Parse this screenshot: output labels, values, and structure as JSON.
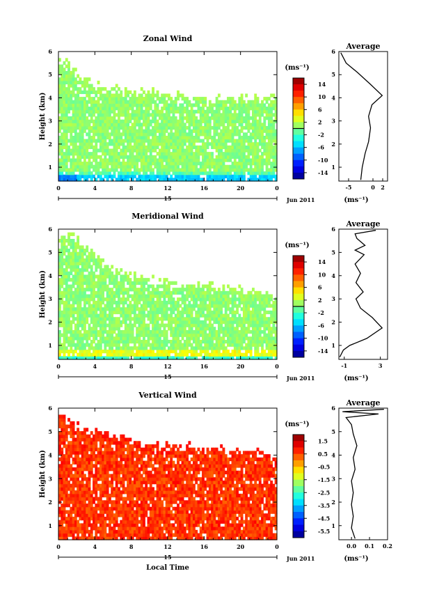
{
  "chart_data": [
    {
      "type": "heatmap",
      "title": "Zonal Wind",
      "ylabel": "Height (km)",
      "xticks": [
        "0",
        "4",
        "8",
        "12",
        "16",
        "20",
        "0"
      ],
      "xlim": [
        0,
        24
      ],
      "ylim": [
        0.4,
        6
      ],
      "yticks": [
        "1",
        "2",
        "3",
        "4",
        "5",
        "6"
      ],
      "date_day": "15",
      "date_month": "Jun 2011",
      "colorbar": {
        "unit": "(ms⁻¹)",
        "ticks": [
          "14",
          "10",
          "6",
          "2",
          "-2",
          "-6",
          "-10",
          "-14"
        ],
        "range": [
          -16,
          16
        ],
        "kind": "zonal"
      },
      "cover": [
        [
          0.6,
          5.6
        ],
        [
          2,
          5.0
        ],
        [
          4,
          4.5
        ],
        [
          8,
          4.3
        ],
        [
          12,
          4.1
        ],
        [
          16,
          3.95
        ],
        [
          20,
          4.0
        ],
        [
          24,
          4.0
        ]
      ],
      "field": "zonal",
      "avg": {
        "title": "Average",
        "xlabel": "(ms⁻¹)",
        "xticks": [
          "-5",
          "0",
          "2"
        ],
        "xlim": [
          -7,
          3
        ],
        "profile": [
          [
            -2.5,
            0.45
          ],
          [
            -2.2,
            1.0
          ],
          [
            -1.6,
            1.6
          ],
          [
            -0.9,
            2.1
          ],
          [
            -0.5,
            2.7
          ],
          [
            -0.9,
            3.2
          ],
          [
            -0.2,
            3.7
          ],
          [
            1.9,
            4.1
          ],
          [
            -0.6,
            4.6
          ],
          [
            -3.2,
            5.1
          ],
          [
            -5.5,
            5.5
          ],
          [
            -6.6,
            5.95
          ]
        ]
      }
    },
    {
      "type": "heatmap",
      "title": "Meridional Wind",
      "ylabel": "Height (km)",
      "xticks": [
        "0",
        "4",
        "8",
        "12",
        "16",
        "20",
        "0"
      ],
      "xlim": [
        0,
        24
      ],
      "ylim": [
        0.4,
        6
      ],
      "yticks": [
        "1",
        "2",
        "3",
        "4",
        "5",
        "6"
      ],
      "date_day": "15",
      "date_month": "Jun 2011",
      "colorbar": {
        "unit": "(ms⁻¹)",
        "ticks": [
          "14",
          "10",
          "6",
          "2",
          "-2",
          "-6",
          "-10",
          "-14"
        ],
        "range": [
          -16,
          16
        ],
        "kind": "meridional"
      },
      "cover": [
        [
          1.6,
          5.7
        ],
        [
          3,
          5.2
        ],
        [
          6,
          4.3
        ],
        [
          10,
          3.8
        ],
        [
          14,
          3.6
        ],
        [
          18,
          3.5
        ],
        [
          21,
          3.3
        ],
        [
          24,
          3.2
        ]
      ],
      "field": "meridional",
      "avg": {
        "title": "Average",
        "xlabel": "(ms⁻¹)",
        "xticks": [
          "-1",
          "3"
        ],
        "xlim": [
          -1.6,
          3.8
        ],
        "profile": [
          [
            -1.5,
            0.5
          ],
          [
            -1.1,
            0.8
          ],
          [
            -0.4,
            1.0
          ],
          [
            1.5,
            1.3
          ],
          [
            3.2,
            1.75
          ],
          [
            2.1,
            2.2
          ],
          [
            0.8,
            2.6
          ],
          [
            0.3,
            3.0
          ],
          [
            1.1,
            3.3
          ],
          [
            0.3,
            3.7
          ],
          [
            0.8,
            4.1
          ],
          [
            0.2,
            4.5
          ],
          [
            1.2,
            4.9
          ],
          [
            0.2,
            5.1
          ],
          [
            1.3,
            5.3
          ],
          [
            0.4,
            5.6
          ],
          [
            0.2,
            5.8
          ],
          [
            2.5,
            5.95
          ]
        ]
      }
    },
    {
      "type": "heatmap",
      "title": "Vertical Wind",
      "ylabel": "Height (km)",
      "xlabel": "Local Time",
      "xticks": [
        "0",
        "4",
        "8",
        "12",
        "16",
        "20",
        "0"
      ],
      "xlim": [
        0,
        24
      ],
      "ylim": [
        0.4,
        6
      ],
      "yticks": [
        "1",
        "2",
        "3",
        "4",
        "5",
        "6"
      ],
      "date_day": "15",
      "date_month": "Jun 2011",
      "colorbar": {
        "unit": "(ms⁻¹)",
        "ticks": [
          "1.5",
          "0.5",
          "-0.5",
          "-1.5",
          "-2.5",
          "-3.5",
          "-4.5",
          "-5.5"
        ],
        "range": [
          -6,
          2
        ],
        "kind": "vertical"
      },
      "cover": [
        [
          0,
          5.7
        ],
        [
          2,
          5.2
        ],
        [
          6,
          4.8
        ],
        [
          10,
          4.5
        ],
        [
          14,
          4.3
        ],
        [
          18,
          4.2
        ],
        [
          24,
          4.0
        ]
      ],
      "field": "vertical",
      "avg": {
        "title": "Average",
        "xlabel": "(ms⁻¹)",
        "xticks": [
          "0.0",
          "0.1",
          "0.2"
        ],
        "xlim": [
          -0.07,
          0.2
        ],
        "profile": [
          [
            0.02,
            0.45
          ],
          [
            0.0,
            0.9
          ],
          [
            0.01,
            1.4
          ],
          [
            0.0,
            1.9
          ],
          [
            0.01,
            2.4
          ],
          [
            0.0,
            2.9
          ],
          [
            0.02,
            3.4
          ],
          [
            0.01,
            3.9
          ],
          [
            0.03,
            4.4
          ],
          [
            0.01,
            4.9
          ],
          [
            0.0,
            5.3
          ],
          [
            -0.03,
            5.6
          ],
          [
            0.15,
            5.75
          ],
          [
            -0.05,
            5.85
          ],
          [
            0.18,
            5.95
          ]
        ]
      }
    }
  ]
}
